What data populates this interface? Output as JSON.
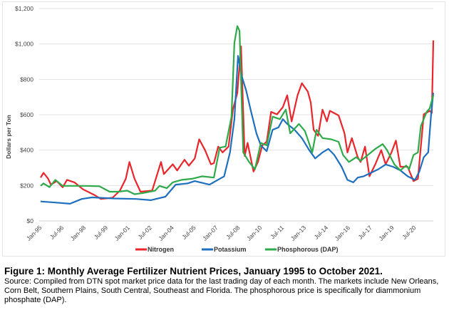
{
  "chart_data": {
    "type": "line",
    "title": "Figure 1: Monthly Average Fertilizer Nutrient Prices, January 1995 to October 2021.",
    "xlabel": "",
    "ylabel": "Dollars per Ton",
    "xlim": [
      1995.0,
      2021.75
    ],
    "ylim": [
      0,
      1200
    ],
    "yticks": [
      0,
      200,
      400,
      600,
      800,
      1000,
      1200
    ],
    "ytick_labels": [
      "$0",
      "$200",
      "$400",
      "$600",
      "$800",
      "$1,000",
      "$1,200"
    ],
    "xticks": [
      1995.0,
      1996.5,
      1998.0,
      1999.5,
      2001.0,
      2002.5,
      2004.0,
      2005.5,
      2007.0,
      2008.5,
      2010.0,
      2011.5,
      2013.0,
      2014.5,
      2016.0,
      2017.5,
      2019.0,
      2020.5
    ],
    "xtick_labels": [
      "Jan-95",
      "Jul-96",
      "Jan-98",
      "Jul-99",
      "Jan-01",
      "Jul-02",
      "Jan-04",
      "Jul-05",
      "Jan-07",
      "Jul-08",
      "Jan-10",
      "Jul-11",
      "Jan-13",
      "Jul-14",
      "Jan-16",
      "Jul-17",
      "Jan-19",
      "Jul-20"
    ],
    "grid": true,
    "legend_position": "bottom",
    "series": [
      {
        "name": "Nitrogen",
        "color": "#e8262b",
        "x": [
          1995.0,
          1995.2,
          1995.5,
          1995.7,
          1996.1,
          1996.5,
          1996.8,
          1997.3,
          1997.9,
          1998.7,
          1999.1,
          1999.9,
          2000.4,
          2000.8,
          2001.05,
          2001.4,
          2001.8,
          2002.6,
          2003.2,
          2003.4,
          2004.0,
          2004.3,
          2004.8,
          2005.1,
          2005.5,
          2005.8,
          2006.2,
          2006.6,
          2006.8,
          2007.1,
          2007.4,
          2007.8,
          2008.1,
          2008.4,
          2008.65,
          2008.9,
          2009.1,
          2009.5,
          2009.8,
          2010.1,
          2010.4,
          2010.7,
          2011.1,
          2011.5,
          2011.8,
          2012.1,
          2012.5,
          2012.8,
          2013.2,
          2013.4,
          2013.6,
          2013.9,
          2014.2,
          2014.5,
          2014.7,
          2015.3,
          2015.7,
          2015.9,
          2016.2,
          2016.6,
          2016.8,
          2017.1,
          2017.4,
          2017.8,
          2018.2,
          2018.5,
          2018.9,
          2019.2,
          2019.5,
          2020.0,
          2020.4,
          2020.7,
          2021.1,
          2021.5,
          2021.65,
          2021.75
        ],
        "values": [
          245,
          272,
          240,
          205,
          225,
          190,
          232,
          218,
          178,
          145,
          124,
          131,
          171,
          238,
          333,
          238,
          165,
          171,
          333,
          265,
          320,
          285,
          346,
          312,
          353,
          461,
          400,
          320,
          326,
          420,
          387,
          420,
          629,
          724,
          986,
          367,
          441,
          279,
          333,
          427,
          447,
          616,
          602,
          643,
          710,
          562,
          710,
          778,
          731,
          670,
          515,
          481,
          629,
          562,
          622,
          596,
          495,
          387,
          468,
          360,
          333,
          420,
          252,
          320,
          400,
          320,
          387,
          454,
          306,
          306,
          225,
          238,
          602,
          622,
          610,
          1020
        ]
      },
      {
        "name": "Potassium",
        "color": "#1f6fbf",
        "x": [
          1995.0,
          1996.0,
          1997.0,
          1997.8,
          1998.5,
          2000.0,
          2001.5,
          2002.5,
          2003.5,
          2004.2,
          2005.0,
          2005.5,
          2006.5,
          2007.5,
          2007.9,
          2008.2,
          2008.45,
          2008.7,
          2009.0,
          2009.3,
          2009.7,
          2010.0,
          2010.4,
          2010.8,
          2011.2,
          2011.5,
          2011.8,
          2012.3,
          2012.8,
          2013.3,
          2013.7,
          2014.2,
          2014.6,
          2015.0,
          2015.5,
          2015.9,
          2016.3,
          2016.6,
          2017.0,
          2017.5,
          2018.0,
          2018.5,
          2019.0,
          2019.5,
          2020.0,
          2020.5,
          2020.8,
          2021.1,
          2021.4,
          2021.6,
          2021.75
        ],
        "values": [
          110,
          104,
          97,
          124,
          133,
          127,
          124,
          117,
          137,
          205,
          212,
          225,
          205,
          252,
          387,
          575,
          933,
          818,
          737,
          629,
          495,
          427,
          394,
          515,
          528,
          575,
          548,
          515,
          468,
          400,
          353,
          387,
          407,
          373,
          306,
          232,
          218,
          245,
          252,
          272,
          292,
          319,
          306,
          286,
          252,
          232,
          279,
          360,
          387,
          602,
          724
        ]
      },
      {
        "name": "Phosphorous (DAP)",
        "color": "#2eaa4a",
        "x": [
          1995.0,
          1995.2,
          1995.6,
          1996.0,
          1996.5,
          1997.0,
          1998.0,
          1999.0,
          1999.7,
          2000.3,
          2000.9,
          2001.4,
          2002.0,
          2002.8,
          2003.1,
          2003.6,
          2004.0,
          2004.6,
          2005.3,
          2006.0,
          2006.8,
          2007.2,
          2007.6,
          2008.0,
          2008.2,
          2008.4,
          2008.55,
          2008.8,
          2009.2,
          2009.6,
          2010.0,
          2010.4,
          2010.8,
          2011.3,
          2011.7,
          2012.0,
          2012.6,
          2013.0,
          2013.5,
          2013.8,
          2014.2,
          2014.8,
          2015.3,
          2015.6,
          2016.0,
          2016.5,
          2016.8,
          2017.3,
          2017.8,
          2018.3,
          2018.6,
          2019.1,
          2019.5,
          2019.9,
          2020.1,
          2020.4,
          2020.7,
          2020.9,
          2021.3,
          2021.5,
          2021.75
        ],
        "values": [
          198,
          212,
          191,
          232,
          198,
          198,
          198,
          196,
          165,
          165,
          171,
          151,
          158,
          171,
          198,
          185,
          218,
          232,
          238,
          252,
          245,
          414,
          420,
          589,
          1007,
          1101,
          1074,
          387,
          333,
          292,
          441,
          427,
          589,
          575,
          629,
          495,
          548,
          508,
          387,
          515,
          468,
          461,
          447,
          373,
          333,
          360,
          340,
          373,
          407,
          434,
          400,
          319,
          286,
          313,
          292,
          373,
          387,
          535,
          616,
          636,
          710
        ]
      }
    ]
  },
  "caption": {
    "title": "Figure 1: Monthly Average Fertilizer Nutrient Prices, January 1995 to October 2021.",
    "source": "Source: Compiled from DTN spot market price data for the last trading day of each month.  The markets include New Orleans, Corn Belt, Southern Plains, South Central, Southeast and Florida.  The phosphorous price is specifically for diammonium phosphate (DAP)."
  }
}
